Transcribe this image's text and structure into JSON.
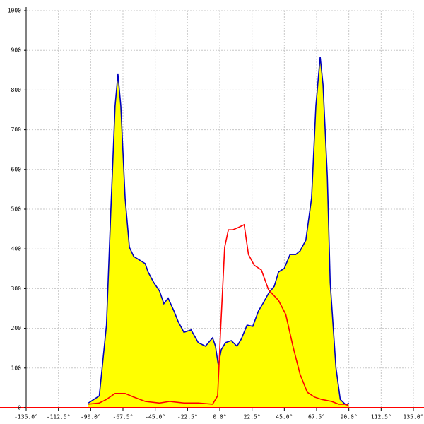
{
  "chart_data": {
    "type": "area",
    "xlim": [
      -135,
      135
    ],
    "ylim": [
      0,
      1000
    ],
    "xticks": [
      {
        "value": -135,
        "label": "-135.0°"
      },
      {
        "value": -112.5,
        "label": "-112.5°"
      },
      {
        "value": -90,
        "label": "-90.0°"
      },
      {
        "value": -67.5,
        "label": "-67.5°"
      },
      {
        "value": -45,
        "label": "-45.0°"
      },
      {
        "value": -22.5,
        "label": "-22.5°"
      },
      {
        "value": 0,
        "label": "0.0°"
      },
      {
        "value": 22.5,
        "label": "22.5°"
      },
      {
        "value": 45,
        "label": "45.0°"
      },
      {
        "value": 67.5,
        "label": "67.5°"
      },
      {
        "value": 90,
        "label": "90.0°"
      },
      {
        "value": 112.5,
        "label": "112.5°"
      },
      {
        "value": 135,
        "label": "135.0°"
      }
    ],
    "yticks": [
      0,
      100,
      200,
      300,
      400,
      500,
      600,
      700,
      800,
      900,
      1000
    ],
    "grid": true,
    "series": [
      {
        "color": "#0000c0",
        "fill": "#ffff00",
        "x": [
          -91.6,
          -84,
          -79,
          -76,
          -73,
          -71,
          -69,
          -66,
          -63,
          -60,
          -56,
          -52,
          -50,
          -46,
          -42,
          -39,
          -36,
          -32,
          -29,
          -25,
          -20,
          -15,
          -10,
          -5,
          -3,
          -1,
          1,
          4,
          8,
          12,
          15,
          19,
          23,
          27,
          30,
          34,
          38,
          41,
          45,
          49,
          53,
          56,
          60,
          64,
          67,
          70,
          72,
          75,
          77,
          81,
          84,
          88,
          90
        ],
        "values": [
          12,
          30,
          208,
          493,
          760,
          840,
          760,
          528,
          404,
          381,
          372,
          363,
          342,
          315,
          294,
          262,
          276,
          244,
          217,
          190,
          196,
          164,
          155,
          176,
          155,
          107,
          146,
          164,
          169,
          155,
          173,
          208,
          205,
          244,
          262,
          288,
          306,
          342,
          351,
          386,
          386,
          395,
          422,
          528,
          760,
          884,
          813,
          582,
          315,
          101,
          21,
          7,
          12
        ]
      },
      {
        "color": "#ff0000",
        "x": [
          -91.6,
          -84,
          -79,
          -73,
          -66,
          -60,
          -52,
          -42,
          -35,
          -25,
          -15,
          -5,
          -1.5,
          0.5,
          3.4,
          6,
          9,
          13,
          17,
          20,
          24,
          29,
          34,
          41,
          46,
          51,
          56,
          61,
          66,
          71,
          78,
          83,
          88,
          90
        ],
        "values": [
          9,
          12,
          21,
          36,
          36,
          27,
          16,
          12,
          16,
          12,
          12,
          9,
          30,
          190,
          404,
          448,
          448,
          454,
          461,
          386,
          359,
          347,
          297,
          270,
          235,
          155,
          84,
          39,
          27,
          21,
          16,
          9,
          9,
          4
        ]
      }
    ]
  }
}
